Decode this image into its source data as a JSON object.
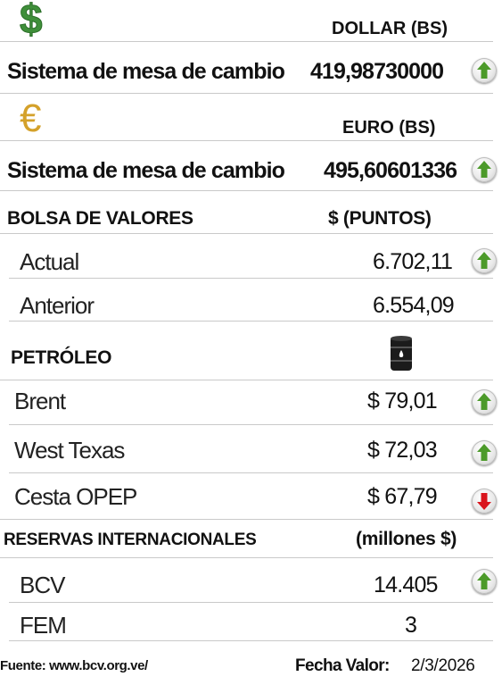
{
  "dollar": {
    "icon": "dollar-sign-icon",
    "icon_glyph": "$",
    "icon_color": "#3f8f3a",
    "header": "DOLLAR (BS)",
    "label": "Sistema de mesa de cambio",
    "value": "419,98730000",
    "trend": "up"
  },
  "euro": {
    "icon": "euro-sign-icon",
    "icon_glyph": "€",
    "icon_color": "#d4a12a",
    "header": "EURO (BS)",
    "label": "Sistema de mesa de cambio",
    "value": "495,60601336",
    "trend": "up"
  },
  "bolsa": {
    "header": "BOLSA DE VALORES",
    "unit": "$ (PUNTOS)",
    "rows": [
      {
        "label": "Actual",
        "value": "6.702,11",
        "trend": "up"
      },
      {
        "label": "Anterior",
        "value": "6.554,09"
      }
    ]
  },
  "petroleo": {
    "header": "PETRÓLEO",
    "icon": "oil-barrel-icon",
    "rows": [
      {
        "label": "Brent",
        "value": "$ 79,01",
        "trend": "up"
      },
      {
        "label": "West Texas",
        "value": "$ 72,03",
        "trend": "up"
      },
      {
        "label": "Cesta OPEP",
        "value": "$ 67,79",
        "trend": "down"
      }
    ]
  },
  "reservas": {
    "header": "RESERVAS INTERNACIONALES",
    "unit": "(millones $)",
    "rows": [
      {
        "label": "BCV",
        "value": "14.405",
        "trend": "up"
      },
      {
        "label": "FEM",
        "value": "3"
      }
    ]
  },
  "footer": {
    "source": "Fuente: www.bcv.org.ve/",
    "date_label": "Fecha Valor:",
    "date_value": "2/3/2026"
  },
  "colors": {
    "up": "#4c9a2a",
    "down": "#d9141c",
    "rule": "#c9c9c9"
  }
}
